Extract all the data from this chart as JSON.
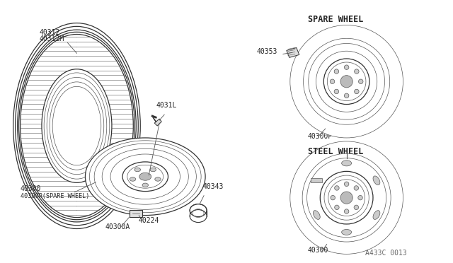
{
  "bg_color": "#ffffff",
  "line_color": "#333333",
  "thin_color": "#555555",
  "reference_code": "A433C 0013",
  "spare_wheel_label": "SPARE WHEEL",
  "steel_wheel_label": "STEEL WHEEL",
  "label_font": 7.0,
  "heading_font": 8.5
}
